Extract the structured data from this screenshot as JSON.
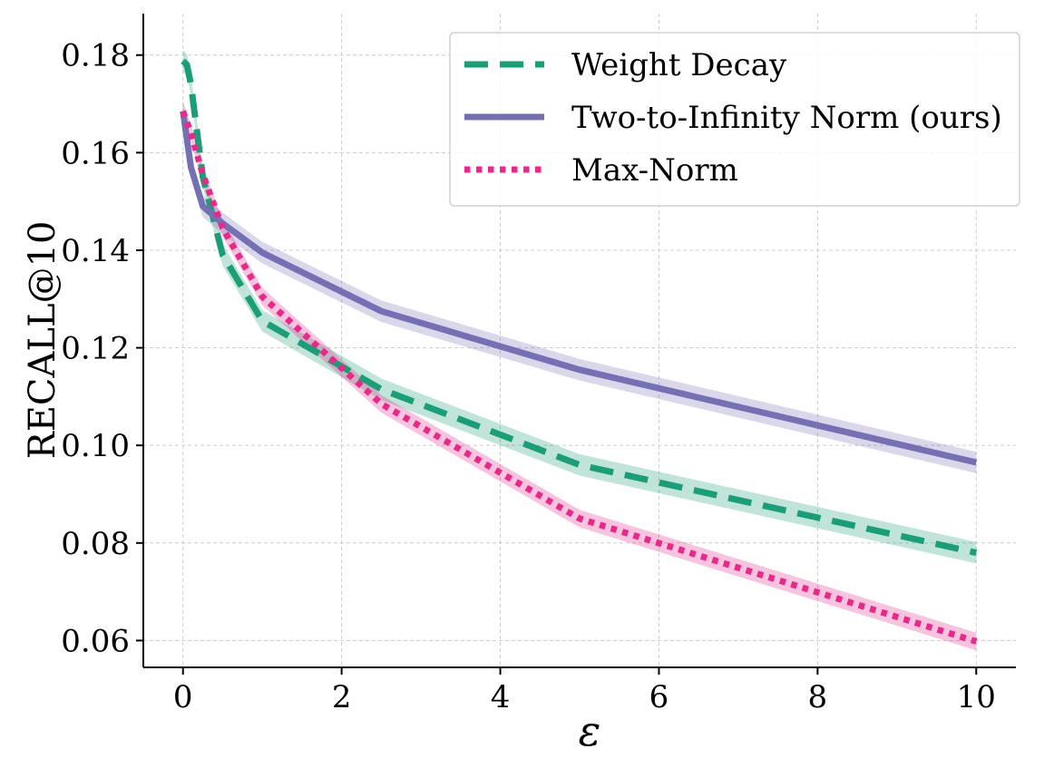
{
  "chart_data": {
    "type": "line",
    "title": "",
    "xlabel": "ε",
    "ylabel": "RECALL@10",
    "xlim": [
      -0.5,
      10.5
    ],
    "ylim": [
      0.0545,
      0.1885
    ],
    "xticks": [
      0,
      2,
      4,
      6,
      8,
      10
    ],
    "xtick_labels": [
      "0",
      "2",
      "4",
      "6",
      "8",
      "10"
    ],
    "yticks": [
      0.06,
      0.08,
      0.1,
      0.12,
      0.14,
      0.16,
      0.18
    ],
    "ytick_labels": [
      "0.06",
      "0.08",
      "0.10",
      "0.12",
      "0.14",
      "0.16",
      "0.18"
    ],
    "grid": true,
    "legend_position": "top-right",
    "series": [
      {
        "name": "Weight Decay",
        "color": "#1b9e77",
        "style": "dashed",
        "x": [
          0,
          0.05,
          0.1,
          0.25,
          0.5,
          1,
          2.5,
          5,
          10
        ],
        "y": [
          0.1788,
          0.178,
          0.174,
          0.155,
          0.139,
          0.1255,
          0.1115,
          0.096,
          0.078
        ],
        "band": 0.0022
      },
      {
        "name": "Two-to-Infinity Norm (ours)",
        "color": "#7570b3",
        "style": "solid",
        "x": [
          0,
          0.1,
          0.25,
          0.5,
          1,
          2.5,
          5,
          10
        ],
        "y": [
          0.1685,
          0.157,
          0.149,
          0.1455,
          0.1395,
          0.1275,
          0.1155,
          0.0965
        ],
        "band": 0.0022
      },
      {
        "name": "Max-Norm",
        "color": "#e7298a",
        "style": "dotted",
        "x": [
          0,
          0.1,
          0.25,
          0.5,
          1,
          2.5,
          5,
          10
        ],
        "y": [
          0.1685,
          0.164,
          0.1555,
          0.1445,
          0.1305,
          0.1085,
          0.085,
          0.0598
        ],
        "band": 0.0018
      }
    ]
  }
}
